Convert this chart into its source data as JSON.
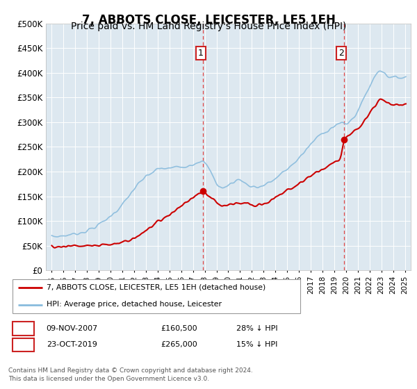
{
  "title": "7, ABBOTS CLOSE, LEICESTER, LE5 1EH",
  "subtitle": "Price paid vs. HM Land Registry's House Price Index (HPI)",
  "ylim": [
    0,
    500000
  ],
  "yticks": [
    0,
    50000,
    100000,
    150000,
    200000,
    250000,
    300000,
    350000,
    400000,
    450000,
    500000
  ],
  "ytick_labels": [
    "£0",
    "£50K",
    "£100K",
    "£150K",
    "£200K",
    "£250K",
    "£300K",
    "£350K",
    "£400K",
    "£450K",
    "£500K"
  ],
  "hpi_color": "#88bbdd",
  "price_color": "#cc0000",
  "vline_color": "#dd4444",
  "bg_color": "#dde8f0",
  "annotation1": {
    "label": "1",
    "date_num": 2007.86,
    "price": 160500
  },
  "annotation2": {
    "label": "2",
    "date_num": 2019.81,
    "price": 265000
  },
  "legend_line1": "7, ABBOTS CLOSE, LEICESTER, LE5 1EH (detached house)",
  "legend_line2": "HPI: Average price, detached house, Leicester",
  "table_row1": [
    "1",
    "09-NOV-2007",
    "£160,500",
    "28% ↓ HPI"
  ],
  "table_row2": [
    "2",
    "23-OCT-2019",
    "£265,000",
    "15% ↓ HPI"
  ],
  "footer": "Contains HM Land Registry data © Crown copyright and database right 2024.\nThis data is licensed under the Open Government Licence v3.0.",
  "xlim_start": 1994.5,
  "xlim_end": 2025.5,
  "title_fontsize": 12,
  "subtitle_fontsize": 10
}
